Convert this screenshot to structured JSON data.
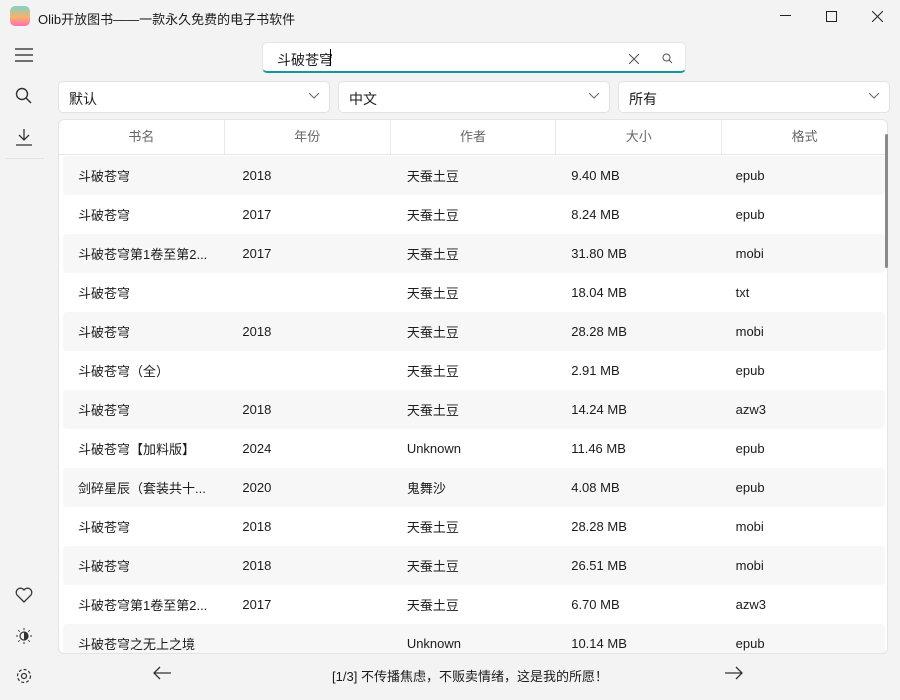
{
  "window": {
    "title": "Olib开放图书——一款永久免费的电子书软件"
  },
  "search": {
    "value": "斗破苍穹"
  },
  "filters": {
    "sort": "默认",
    "language": "中文",
    "format": "所有"
  },
  "table": {
    "headers": [
      "书名",
      "年份",
      "作者",
      "大小",
      "格式"
    ],
    "rows": [
      [
        "斗破苍穹",
        "2018",
        "天蚕土豆",
        "9.40 MB",
        "epub"
      ],
      [
        "斗破苍穹",
        "2017",
        "天蚕土豆",
        "8.24 MB",
        "epub"
      ],
      [
        "斗破苍穹第1卷至第2...",
        "2017",
        "天蚕土豆",
        "31.80 MB",
        "mobi"
      ],
      [
        "斗破苍穹",
        "",
        "天蚕土豆",
        "18.04 MB",
        "txt"
      ],
      [
        "斗破苍穹",
        "2018",
        "天蚕土豆",
        "28.28 MB",
        "mobi"
      ],
      [
        "斗破苍穹（全）",
        "",
        "天蚕土豆",
        "2.91 MB",
        "epub"
      ],
      [
        "斗破苍穹",
        "2018",
        "天蚕土豆",
        "14.24 MB",
        "azw3"
      ],
      [
        "斗破苍穹【加料版】",
        "2024",
        "Unknown",
        "11.46 MB",
        "epub"
      ],
      [
        "剑碎星辰（套装共十...",
        "2020",
        "鬼舞沙",
        "4.08 MB",
        "epub"
      ],
      [
        "斗破苍穹",
        "2018",
        "天蚕土豆",
        "28.28 MB",
        "mobi"
      ],
      [
        "斗破苍穹",
        "2018",
        "天蚕土豆",
        "26.51 MB",
        "mobi"
      ],
      [
        "斗破苍穹第1卷至第2...",
        "2017",
        "天蚕土豆",
        "6.70 MB",
        "azw3"
      ],
      [
        "斗破苍穹之无上之境",
        "",
        "Unknown",
        "10.14 MB",
        "epub"
      ]
    ]
  },
  "footer": {
    "text": "[1/3] 不传播焦虑，不贩卖情绪，这是我的所愿！"
  },
  "colors": {
    "accent": "#0f9a9a"
  }
}
